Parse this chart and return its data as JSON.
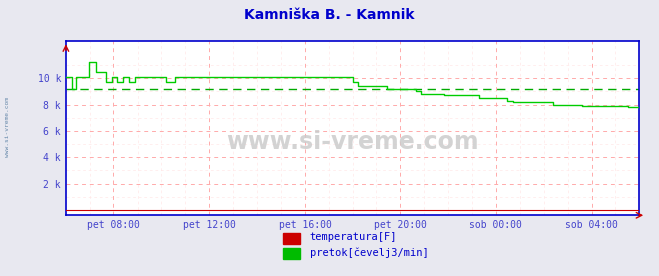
{
  "title": "Kamniška B. - Kamnik",
  "title_color": "#0000cc",
  "bg_color": "#e8e8f0",
  "plot_bg_color": "#ffffff",
  "grid_color_major": "#ffaaaa",
  "grid_color_minor": "#ffe8e8",
  "watermark": "www.si-vreme.com",
  "side_label": "www.si-vreme.com",
  "xlabel_color": "#4444cc",
  "ylabel_color": "#4444cc",
  "axis_color": "#0000cc",
  "ytick_labels": [
    "2 k",
    "4 k",
    "6 k",
    "8 k",
    "10 k"
  ],
  "ytick_values": [
    2000,
    4000,
    6000,
    8000,
    10000
  ],
  "ylim": [
    -400,
    12800
  ],
  "xlim": [
    0,
    1
  ],
  "xtick_labels": [
    "pet 08:00",
    "pet 12:00",
    "pet 16:00",
    "pet 20:00",
    "sob 00:00",
    "sob 04:00"
  ],
  "xtick_positions": [
    0.083,
    0.25,
    0.417,
    0.583,
    0.75,
    0.917
  ],
  "avg_line_value": 9200,
  "avg_line_color": "#00aa00",
  "legend_entries": [
    {
      "label": "temperatura[F]",
      "color": "#cc0000"
    },
    {
      "label": "pretok[čevelj3/min]",
      "color": "#00bb00"
    }
  ],
  "temp_line_color": "#cc0000",
  "flow_line_color": "#00cc00",
  "flow_data_x": [
    0.0,
    0.005,
    0.01,
    0.015,
    0.018,
    0.022,
    0.025,
    0.03,
    0.035,
    0.04,
    0.043,
    0.048,
    0.053,
    0.06,
    0.065,
    0.07,
    0.075,
    0.08,
    0.085,
    0.09,
    0.095,
    0.1,
    0.105,
    0.11,
    0.115,
    0.12,
    0.125,
    0.13,
    0.135,
    0.14,
    0.145,
    0.15,
    0.16,
    0.165,
    0.17,
    0.175,
    0.18,
    0.185,
    0.19,
    0.2,
    0.21,
    0.22,
    0.23,
    0.24,
    0.25,
    0.26,
    0.27,
    0.28,
    0.29,
    0.3,
    0.32,
    0.34,
    0.36,
    0.38,
    0.4,
    0.42,
    0.44,
    0.46,
    0.48,
    0.5,
    0.51,
    0.52,
    0.53,
    0.54,
    0.55,
    0.56,
    0.57,
    0.58,
    0.59,
    0.6,
    0.61,
    0.62,
    0.63,
    0.64,
    0.65,
    0.66,
    0.67,
    0.68,
    0.7,
    0.72,
    0.74,
    0.75,
    0.76,
    0.77,
    0.78,
    0.8,
    0.82,
    0.84,
    0.85,
    0.86,
    0.87,
    0.88,
    0.9,
    0.92,
    0.94,
    0.96,
    0.98,
    1.0
  ],
  "flow_data_y": [
    10100,
    10100,
    9200,
    9200,
    10100,
    10100,
    10100,
    10100,
    10100,
    11200,
    11200,
    11200,
    10500,
    10500,
    10500,
    9700,
    9700,
    10100,
    10100,
    9700,
    9700,
    10100,
    10100,
    9700,
    9700,
    10100,
    10100,
    10100,
    10100,
    10100,
    10100,
    10100,
    10100,
    10100,
    10100,
    9700,
    9700,
    9700,
    10100,
    10100,
    10100,
    10100,
    10100,
    10100,
    10100,
    10100,
    10100,
    10100,
    10100,
    10100,
    10100,
    10100,
    10100,
    10100,
    10100,
    10100,
    10100,
    10100,
    10100,
    9700,
    9400,
    9400,
    9400,
    9400,
    9400,
    9200,
    9200,
    9200,
    9200,
    9200,
    9000,
    8800,
    8800,
    8800,
    8800,
    8700,
    8700,
    8700,
    8700,
    8500,
    8500,
    8500,
    8500,
    8300,
    8200,
    8200,
    8200,
    8200,
    8000,
    8000,
    8000,
    8000,
    7900,
    7900,
    7900,
    7900,
    7800,
    7800
  ]
}
